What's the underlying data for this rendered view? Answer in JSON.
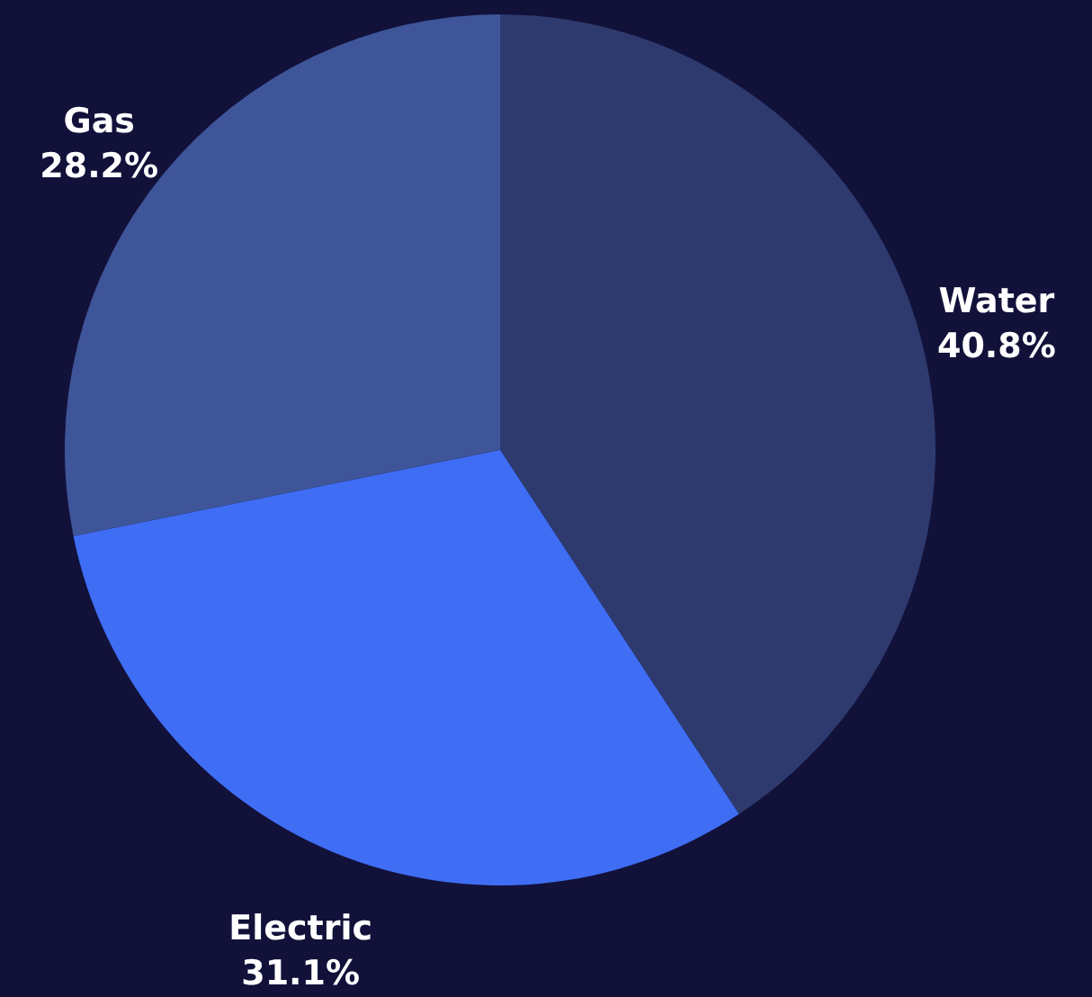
{
  "chart_data": {
    "type": "pie",
    "categories": [
      "Water",
      "Electric",
      "Gas"
    ],
    "values": [
      40.8,
      31.1,
      28.2
    ],
    "value_labels": [
      "40.8%",
      "31.1%",
      "28.2%"
    ],
    "colors": [
      "#2e3a6e",
      "#3f6ef5",
      "#3f5599"
    ]
  }
}
